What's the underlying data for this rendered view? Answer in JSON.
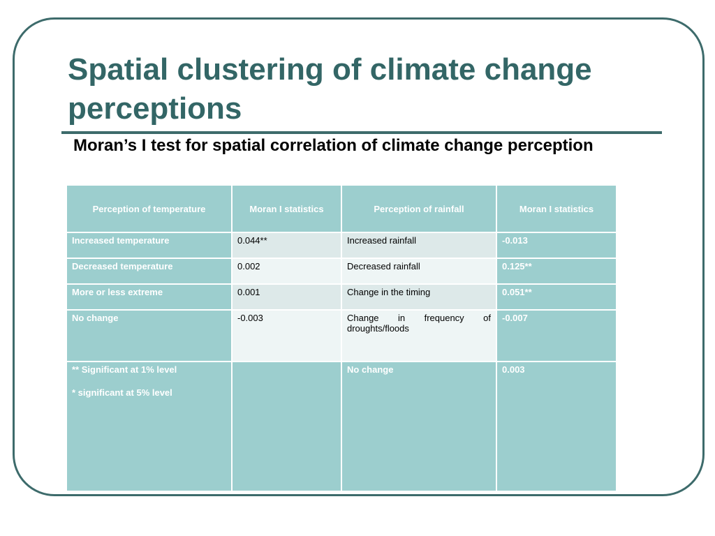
{
  "header": {
    "title": "Spatial clustering of climate change perceptions",
    "subtitle": "Moran’s I test for spatial correlation of climate change perception"
  },
  "table": {
    "columns": [
      "Perception of temperature",
      "Moran I statistics",
      "Perception of rainfall",
      "Moran I statistics"
    ],
    "rows": [
      [
        "Increased temperature",
        "0.044**",
        "Increased rainfall",
        "-0.013"
      ],
      [
        "Decreased temperature",
        "0.002",
        "Decreased rainfall",
        "0.125**"
      ],
      [
        "More or less extreme",
        "0.001",
        "Change in the timing",
        "0.051**"
      ],
      [
        "No change",
        "-0.003",
        "Change in frequency of droughts/floods",
        "-0.007"
      ],
      [
        null,
        null,
        "No change",
        "0.003"
      ]
    ],
    "notes": [
      "** Significant at 1% level",
      "* significant at 5% level"
    ]
  }
}
